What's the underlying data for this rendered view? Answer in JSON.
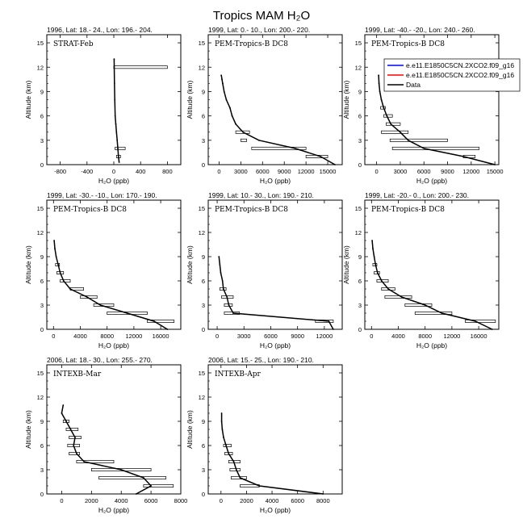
{
  "figure_title": "Tropics MAM H₂O",
  "legend": [
    {
      "label": "e.e11.E1850C5CN.2XCO2.f09_g16",
      "color": "#0000ff"
    },
    {
      "label": "e.e11.E1850C5CN.2XCO2.f09_g16",
      "color": "#ff0000"
    },
    {
      "label": "Data",
      "color": "#000000"
    }
  ],
  "chart_data": [
    {
      "type": "line",
      "header": "1996, Lat: 18.- 24., Lon: 196.- 204.",
      "mission": "STRAT-Feb",
      "xlabel": "H₂O (ppb)",
      "ylabel": "Altitude (km)",
      "xlim": [
        -1000,
        1000
      ],
      "ylim": [
        0,
        16
      ],
      "xticks": [
        -800,
        -400,
        0,
        400,
        800
      ],
      "yticks": [
        0,
        3,
        6,
        9,
        12,
        15
      ],
      "series": [
        {
          "name": "Data",
          "x": [
            80,
            70,
            60,
            50,
            40,
            30,
            20,
            15,
            10,
            5
          ],
          "y": [
            0.3,
            1,
            2,
            3,
            4,
            5,
            6,
            8,
            10,
            13
          ]
        }
      ],
      "error_bars": [
        {
          "y": 12,
          "xmin": 0,
          "xmax": 800
        },
        {
          "y": 2,
          "xmin": 20,
          "xmax": 170
        },
        {
          "y": 1,
          "xmin": 40,
          "xmax": 100
        }
      ]
    },
    {
      "type": "line",
      "header": "1999, Lat: 0.- 10., Lon: 200.- 220.",
      "mission": "PEM-Tropics-B DC8",
      "xlabel": "H₂O (ppb)",
      "ylabel": "Altitude (km)",
      "xlim": [
        -1500,
        17000
      ],
      "ylim": [
        0,
        16
      ],
      "xticks": [
        0,
        3000,
        6000,
        9000,
        12000,
        15000
      ],
      "yticks": [
        0,
        3,
        6,
        9,
        12,
        15
      ],
      "series": [
        {
          "name": "Data",
          "x": [
            16000,
            14000,
            10500,
            5500,
            3300,
            2300,
            1800,
            1500,
            1000,
            700,
            500,
            400,
            300
          ],
          "y": [
            0,
            1,
            2,
            3,
            4,
            5,
            6,
            7,
            8,
            9,
            10,
            10.5,
            11
          ]
        }
      ],
      "error_bars": [
        {
          "y": 2,
          "xmin": 4500,
          "xmax": 12000
        },
        {
          "y": 4,
          "xmin": 2300,
          "xmax": 4200
        },
        {
          "y": 3,
          "xmin": 3000,
          "xmax": 3800
        },
        {
          "y": 1,
          "xmin": 12000,
          "xmax": 15000
        }
      ]
    },
    {
      "type": "line",
      "header": "1999, Lat: -40.- -20., Lon: 240.- 260.",
      "mission": "PEM-Tropics-B DC8",
      "xlabel": "H₂O (ppb)",
      "ylabel": "Altitude (km)",
      "xlim": [
        -1500,
        15500
      ],
      "ylim": [
        0,
        16
      ],
      "xticks": [
        0,
        3000,
        6000,
        9000,
        12000,
        15000
      ],
      "yticks": [
        0,
        3,
        6,
        9,
        12,
        15
      ],
      "series": [
        {
          "name": "Data",
          "x": [
            15000,
            11000,
            6000,
            4000,
            3000,
            1800,
            1300,
            900,
            600,
            400,
            300,
            250
          ],
          "y": [
            0,
            1,
            2,
            3,
            4,
            5,
            6,
            7,
            8,
            9,
            10,
            11
          ]
        }
      ],
      "error_bars": [
        {
          "y": 2,
          "xmin": 2000,
          "xmax": 13000
        },
        {
          "y": 3,
          "xmin": 1700,
          "xmax": 9000
        },
        {
          "y": 4,
          "xmin": 600,
          "xmax": 4000
        },
        {
          "y": 5,
          "xmin": 1200,
          "xmax": 3000
        },
        {
          "y": 1,
          "xmin": 11000,
          "xmax": 12500
        },
        {
          "y": 6,
          "xmin": 900,
          "xmax": 2000
        },
        {
          "y": 7,
          "xmin": 500,
          "xmax": 1100
        }
      ]
    },
    {
      "type": "line",
      "header": "1999, Lat: -30.- -10., Lon: 170.- 190.",
      "mission": "PEM-Tropics-B DC8",
      "xlabel": "H₂O (ppb)",
      "ylabel": "Altitude (km)",
      "xlim": [
        -1000,
        19000
      ],
      "ylim": [
        0,
        16
      ],
      "xticks": [
        0,
        4000,
        8000,
        12000,
        16000
      ],
      "yticks": [
        0,
        3,
        6,
        9,
        12,
        15
      ],
      "series": [
        {
          "name": "Data",
          "x": [
            17000,
            15000,
            11000,
            7000,
            5000,
            2500,
            1500,
            1000,
            700,
            400,
            200,
            100
          ],
          "y": [
            0,
            1,
            2,
            3,
            4,
            5,
            6,
            7,
            8,
            9,
            10,
            11
          ]
        }
      ],
      "error_bars": [
        {
          "y": 1,
          "xmin": 14000,
          "xmax": 18000
        },
        {
          "y": 2,
          "xmin": 8000,
          "xmax": 14000
        },
        {
          "y": 3,
          "xmin": 6000,
          "xmax": 9000
        },
        {
          "y": 4,
          "xmin": 4000,
          "xmax": 6500
        },
        {
          "y": 5,
          "xmin": 2500,
          "xmax": 4500
        },
        {
          "y": 6,
          "xmin": 1000,
          "xmax": 2500
        },
        {
          "y": 7,
          "xmin": 500,
          "xmax": 1500
        },
        {
          "y": 8,
          "xmin": 300,
          "xmax": 900
        }
      ]
    },
    {
      "type": "line",
      "header": "1999, Lat: 10.- 30., Lon: 190.- 210.",
      "mission": "PEM-Tropics-B DC8",
      "xlabel": "H₂O (ppb)",
      "ylabel": "Altitude (km)",
      "xlim": [
        -1000,
        14000
      ],
      "ylim": [
        0,
        16
      ],
      "xticks": [
        0,
        3000,
        6000,
        9000,
        12000
      ],
      "yticks": [
        0,
        3,
        6,
        9,
        12,
        15
      ],
      "series": [
        {
          "name": "Data",
          "x": [
            13000,
            12500,
            1800,
            1300,
            1100,
            700,
            600,
            400,
            300,
            200
          ],
          "y": [
            0,
            1,
            2,
            3,
            4,
            5,
            6,
            7,
            8,
            9
          ]
        }
      ],
      "error_bars": [
        {
          "y": 1,
          "xmin": 11000,
          "xmax": 13000
        },
        {
          "y": 2,
          "xmin": 800,
          "xmax": 2500
        },
        {
          "y": 3,
          "xmin": 800,
          "xmax": 1700
        },
        {
          "y": 4,
          "xmin": 500,
          "xmax": 1800
        },
        {
          "y": 5,
          "xmin": 300,
          "xmax": 1000
        }
      ]
    },
    {
      "type": "line",
      "header": "1999, Lat: -20.- 0., Lon: 200.- 230.",
      "mission": "PEM-Tropics-B DC8",
      "xlabel": "H₂O (ppb)",
      "ylabel": "Altitude (km)",
      "xlim": [
        -1000,
        19000
      ],
      "ylim": [
        0,
        16
      ],
      "xticks": [
        0,
        4000,
        8000,
        12000,
        16000
      ],
      "yticks": [
        0,
        3,
        6,
        9,
        12,
        15
      ],
      "series": [
        {
          "name": "Data",
          "x": [
            18000,
            15500,
            10500,
            8000,
            4500,
            2500,
            1500,
            900,
            600,
            400,
            200,
            100
          ],
          "y": [
            0,
            1,
            2,
            3,
            4,
            5,
            6,
            7,
            8,
            9,
            10,
            11
          ]
        }
      ],
      "error_bars": [
        {
          "y": 1,
          "xmin": 14000,
          "xmax": 18500
        },
        {
          "y": 2,
          "xmin": 6500,
          "xmax": 12000
        },
        {
          "y": 3,
          "xmin": 5000,
          "xmax": 9000
        },
        {
          "y": 4,
          "xmin": 2000,
          "xmax": 6000
        },
        {
          "y": 5,
          "xmin": 1500,
          "xmax": 3500
        },
        {
          "y": 6,
          "xmin": 800,
          "xmax": 2500
        },
        {
          "y": 7,
          "xmin": 400,
          "xmax": 1200
        },
        {
          "y": 8,
          "xmin": 200,
          "xmax": 800
        }
      ]
    },
    {
      "type": "line",
      "header": "2006, Lat: 18.- 30., Lon: 255.- 270.",
      "mission": "INTEXB-Mar",
      "xlabel": "H₂O (ppb)",
      "ylabel": "Altitude (km)",
      "xlim": [
        -1000,
        8000
      ],
      "ylim": [
        0,
        16
      ],
      "xticks": [
        0,
        2000,
        4000,
        6000,
        8000
      ],
      "yticks": [
        0,
        3,
        6,
        9,
        12,
        15
      ],
      "series": [
        {
          "name": "Data",
          "x": [
            5000,
            6000,
            5500,
            4000,
            1500,
            1000,
            800,
            900,
            600,
            300,
            0,
            100
          ],
          "y": [
            0,
            1,
            2,
            3,
            4,
            5,
            6,
            7,
            8,
            9,
            10,
            11
          ]
        }
      ],
      "error_bars": [
        {
          "y": 1,
          "xmin": 5500,
          "xmax": 7500
        },
        {
          "y": 2,
          "xmin": 2500,
          "xmax": 7000
        },
        {
          "y": 3,
          "xmin": 2000,
          "xmax": 6000
        },
        {
          "y": 4,
          "xmin": 1000,
          "xmax": 3500
        },
        {
          "y": 5,
          "xmin": 500,
          "xmax": 1200
        },
        {
          "y": 6,
          "xmin": 400,
          "xmax": 1200
        },
        {
          "y": 7,
          "xmin": 500,
          "xmax": 1300
        },
        {
          "y": 8,
          "xmin": 300,
          "xmax": 1100
        },
        {
          "y": 9,
          "xmin": 100,
          "xmax": 500
        }
      ]
    },
    {
      "type": "line",
      "header": "2006, Lat: 15.- 25., Lon: 190.- 210.",
      "mission": "INTEXB-Apr",
      "xlabel": "H₂O (ppb)",
      "ylabel": "Altitude (km)",
      "xlim": [
        -1000,
        9500
      ],
      "ylim": [
        0,
        16
      ],
      "xticks": [
        0,
        2000,
        4000,
        6000,
        8000
      ],
      "yticks": [
        0,
        3,
        6,
        9,
        12,
        15
      ],
      "series": [
        {
          "name": "Data",
          "x": [
            8000,
            3000,
            1500,
            1200,
            1000,
            600,
            400,
            200,
            100,
            50,
            50
          ],
          "y": [
            0,
            1,
            2,
            3,
            4,
            5,
            6,
            7,
            8,
            9,
            10
          ]
        }
      ],
      "error_bars": [
        {
          "y": 1,
          "xmin": 1500,
          "xmax": 3000
        },
        {
          "y": 2,
          "xmin": 800,
          "xmax": 2000
        },
        {
          "y": 3,
          "xmin": 700,
          "xmax": 1500
        },
        {
          "y": 4,
          "xmin": 600,
          "xmax": 1500
        },
        {
          "y": 5,
          "xmin": 300,
          "xmax": 900
        },
        {
          "y": 6,
          "xmin": 200,
          "xmax": 800
        }
      ]
    }
  ]
}
